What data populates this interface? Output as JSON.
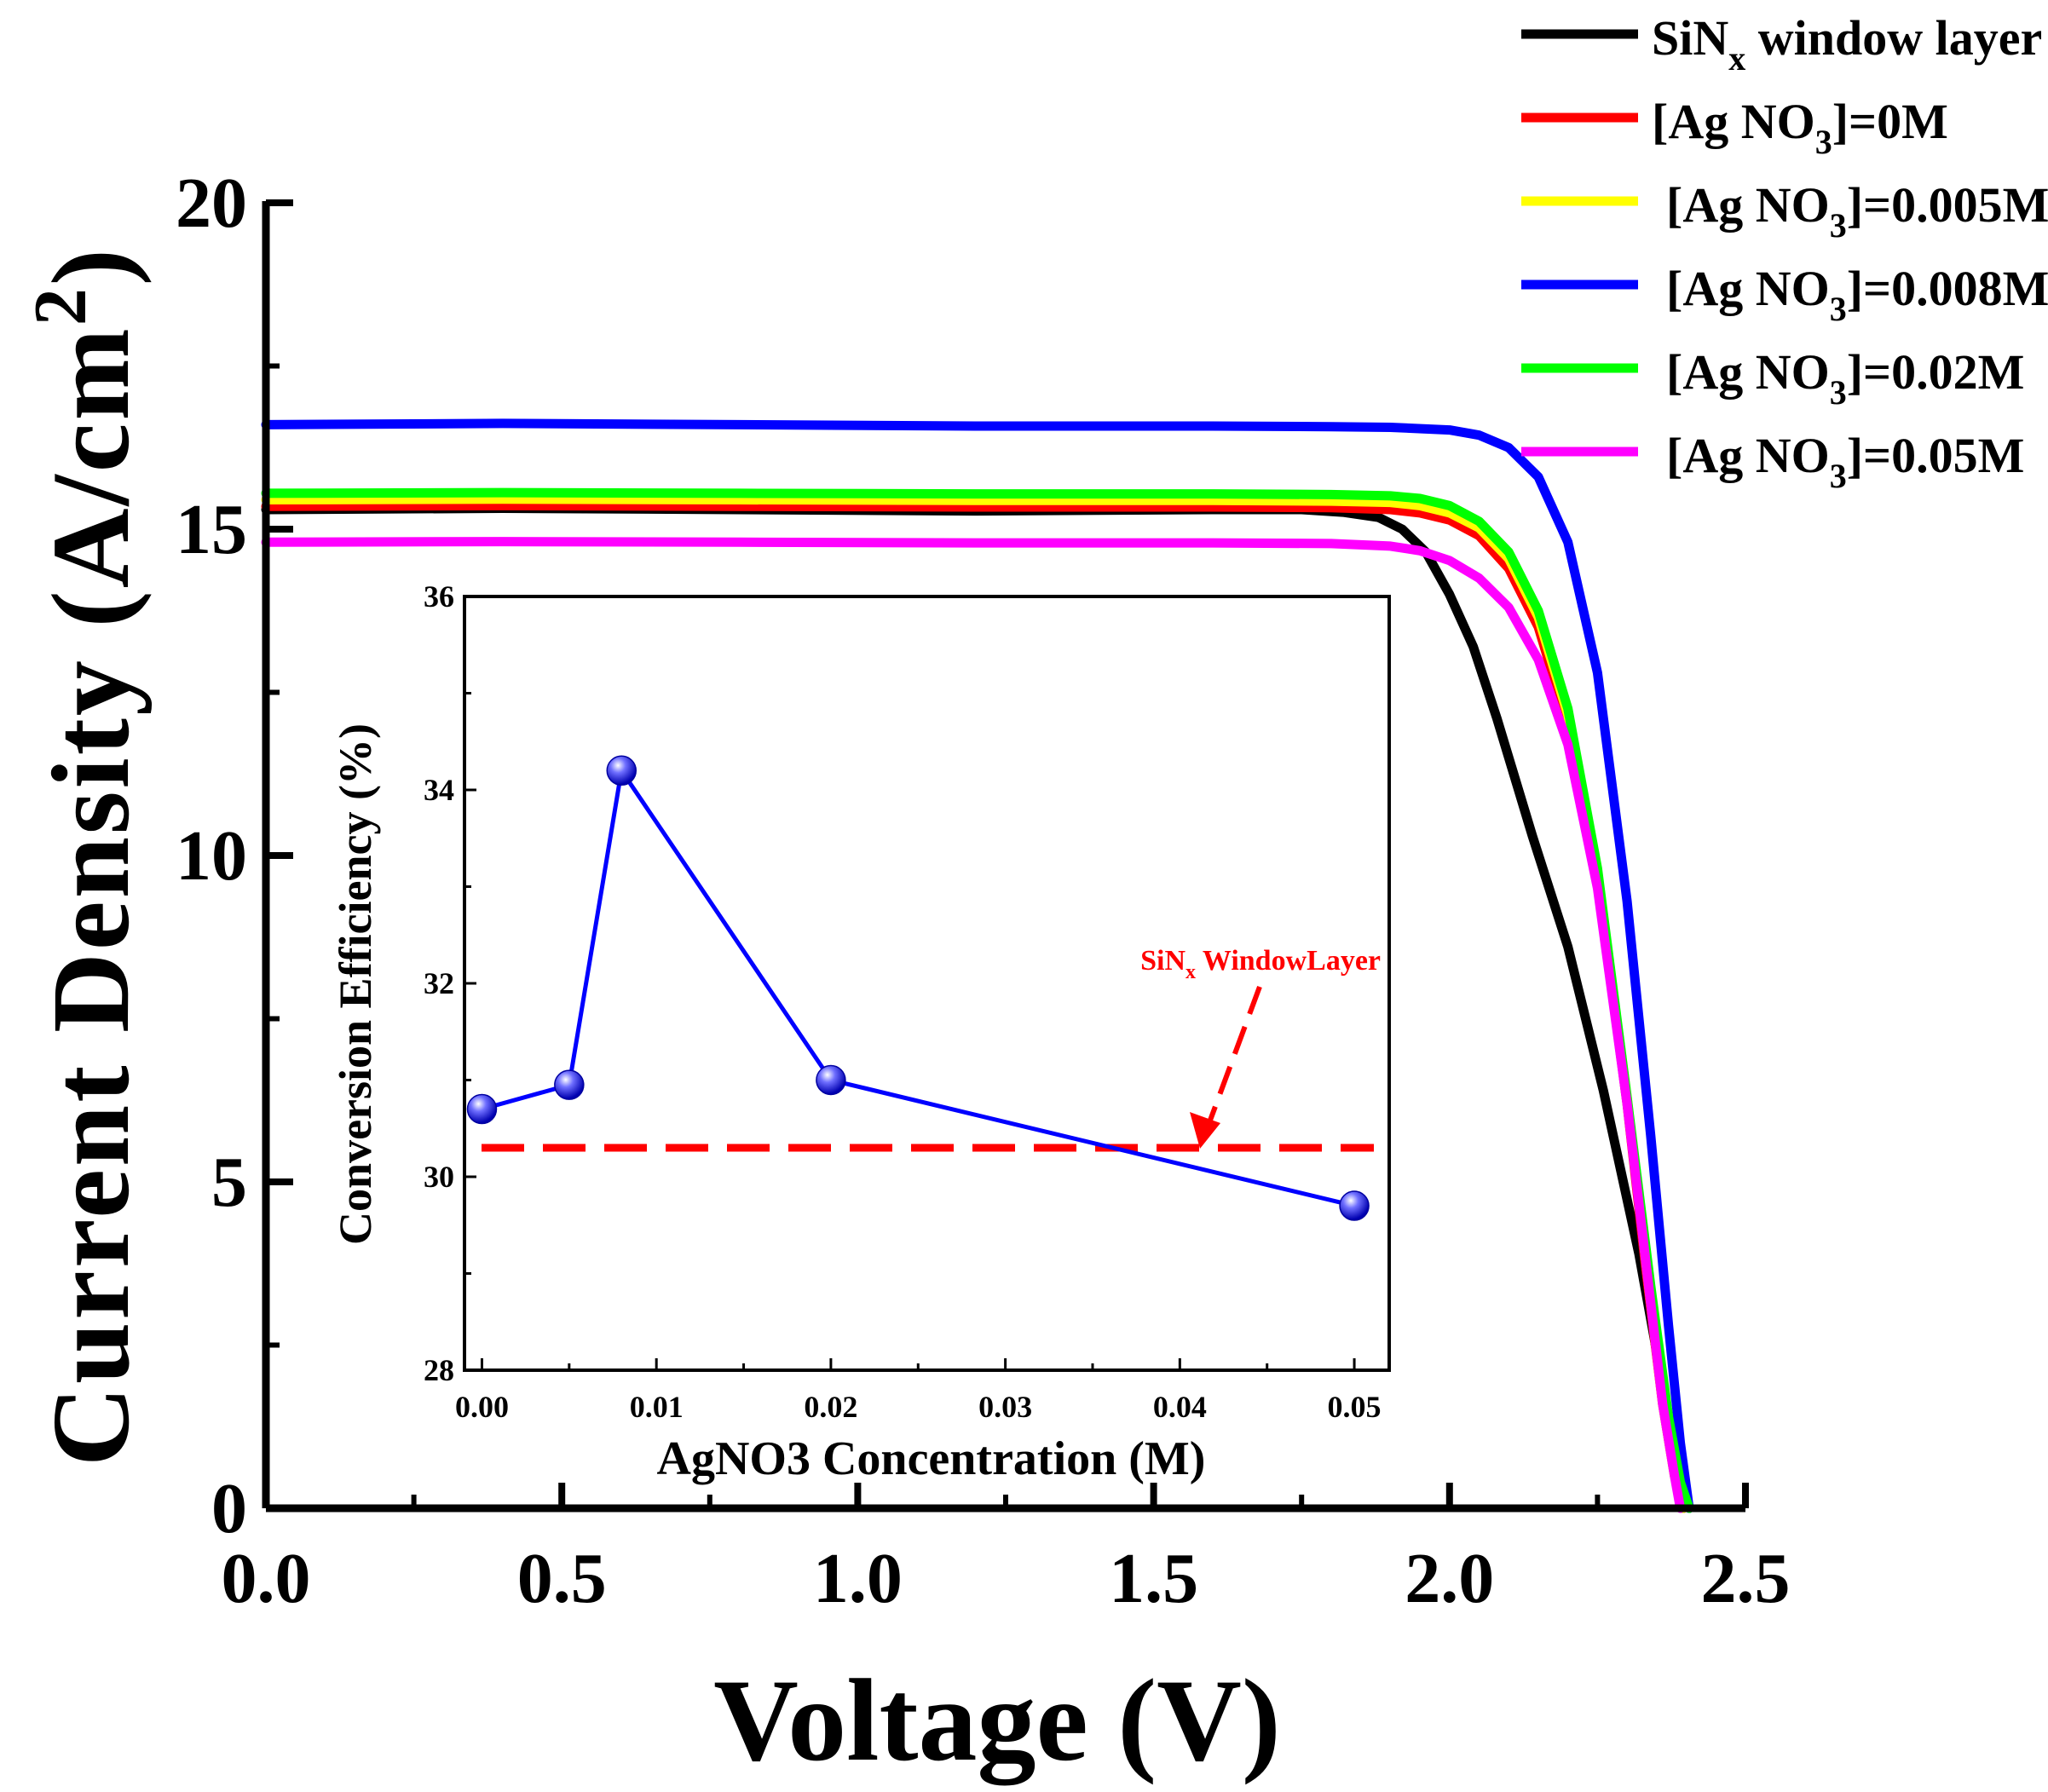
{
  "chart_data": [
    {
      "type": "line",
      "title": "",
      "xlabel": "Voltage (V)",
      "ylabel": "Current Density (A/cm",
      "ylabel_sup": "2",
      "ylabel_close": ")",
      "xlim": [
        0,
        2.5
      ],
      "ylim": [
        0,
        20
      ],
      "xticks": [
        0,
        0.5,
        1.0,
        1.5,
        2.0,
        2.5
      ],
      "xtick_labels": [
        "0.0",
        "0.5",
        "1.0",
        "1.5",
        "2.0",
        "2.5"
      ],
      "yticks": [
        0,
        5,
        10,
        15,
        20
      ],
      "ytick_labels": [
        "0",
        "5",
        "10",
        "15",
        "20"
      ],
      "legend_position": "top-right",
      "series": [
        {
          "name": "SiNx window layer",
          "label_main": "SiN",
          "label_sub": "x",
          "label_tail": " window layer",
          "color": "#000000",
          "x": [
            0,
            0.4,
            0.8,
            1.2,
            1.6,
            1.75,
            1.82,
            1.88,
            1.92,
            1.96,
            2.0,
            2.04,
            2.08,
            2.14,
            2.2,
            2.26,
            2.32,
            2.36,
            2.385,
            2.395
          ],
          "y": [
            15.3,
            15.32,
            15.3,
            15.28,
            15.3,
            15.3,
            15.26,
            15.18,
            15.0,
            14.65,
            14.0,
            13.2,
            12.1,
            10.3,
            8.6,
            6.4,
            3.9,
            1.9,
            0.6,
            0.0
          ]
        },
        {
          "name": "[Ag NO3]=0M",
          "label_main": "[Ag NO",
          "label_sub": "3",
          "label_tail": "]=0M",
          "color": "#ff0000",
          "x": [
            0,
            0.4,
            0.8,
            1.2,
            1.6,
            1.8,
            1.9,
            1.95,
            2.0,
            2.05,
            2.1,
            2.15,
            2.2,
            2.25,
            2.3,
            2.33,
            2.36,
            2.38,
            2.395
          ],
          "y": [
            15.35,
            15.36,
            15.35,
            15.34,
            15.34,
            15.33,
            15.3,
            15.25,
            15.14,
            14.9,
            14.4,
            13.5,
            12.0,
            9.6,
            6.2,
            3.8,
            1.6,
            0.5,
            0.0
          ]
        },
        {
          "name": "[Ag NO3]=0.005M",
          "label_main": "[Ag NO",
          "label_sub": "3",
          "label_tail": "]=0.005M",
          "color": "#ffff00",
          "x": [
            0,
            0.4,
            0.8,
            1.2,
            1.6,
            1.8,
            1.9,
            1.95,
            2.0,
            2.05,
            2.1,
            2.15,
            2.2,
            2.25,
            2.3,
            2.33,
            2.36,
            2.38,
            2.395
          ],
          "y": [
            15.45,
            15.46,
            15.45,
            15.44,
            15.44,
            15.43,
            15.41,
            15.36,
            15.25,
            15.02,
            14.55,
            13.65,
            12.15,
            9.7,
            6.3,
            3.9,
            1.6,
            0.5,
            0.0
          ]
        },
        {
          "name": "[Ag NO3]=0.008M",
          "label_main": "[Ag NO",
          "label_sub": "3",
          "label_tail": "]=0.008M",
          "color": "#0000ff",
          "x": [
            0,
            0.4,
            0.8,
            1.2,
            1.6,
            1.8,
            1.9,
            2.0,
            2.05,
            2.1,
            2.15,
            2.2,
            2.25,
            2.3,
            2.34,
            2.37,
            2.39,
            2.405
          ],
          "y": [
            16.6,
            16.62,
            16.6,
            16.58,
            16.58,
            16.57,
            16.56,
            16.52,
            16.44,
            16.25,
            15.8,
            14.8,
            12.8,
            9.3,
            5.7,
            2.8,
            1.0,
            0.0
          ]
        },
        {
          "name": "[Ag NO3]=0.02M",
          "label_main": "[Ag NO",
          "label_sub": "3",
          "label_tail": "]=0.02M",
          "color": "#00ff00",
          "x": [
            0,
            0.4,
            0.8,
            1.2,
            1.6,
            1.8,
            1.9,
            1.95,
            2.0,
            2.05,
            2.1,
            2.15,
            2.2,
            2.25,
            2.3,
            2.34,
            2.37,
            2.39,
            2.405
          ],
          "y": [
            15.55,
            15.56,
            15.55,
            15.54,
            15.54,
            15.53,
            15.51,
            15.47,
            15.36,
            15.12,
            14.65,
            13.75,
            12.25,
            9.8,
            6.3,
            3.4,
            1.4,
            0.4,
            0.0
          ]
        },
        {
          "name": "[Ag NO3]=0.05M",
          "label_main": "[Ag NO",
          "label_sub": "3",
          "label_tail": "]=0.05M",
          "color": "#ff00ff",
          "x": [
            0,
            0.4,
            0.8,
            1.2,
            1.6,
            1.8,
            1.9,
            1.95,
            2.0,
            2.05,
            2.1,
            2.15,
            2.2,
            2.25,
            2.3,
            2.33,
            2.36,
            2.38,
            2.39
          ],
          "y": [
            14.8,
            14.81,
            14.8,
            14.79,
            14.79,
            14.78,
            14.74,
            14.67,
            14.52,
            14.25,
            13.8,
            13.0,
            11.7,
            9.5,
            6.2,
            3.9,
            1.6,
            0.5,
            0.0
          ]
        }
      ]
    },
    {
      "type": "line",
      "title": "",
      "xlabel": "AgNO3 Concentration (M)",
      "ylabel": "Conversion Efficiency (%)",
      "xlim": [
        -0.001,
        0.052
      ],
      "ylim": [
        28,
        36
      ],
      "xticks": [
        0,
        0.01,
        0.02,
        0.03,
        0.04,
        0.05
      ],
      "xtick_labels": [
        "0.00",
        "0.01",
        "0.02",
        "0.03",
        "0.04",
        "0.05"
      ],
      "yticks": [
        28,
        30,
        32,
        34,
        36
      ],
      "ytick_labels": [
        "28",
        "30",
        "32",
        "34",
        "36"
      ],
      "series": [
        {
          "name": "Conversion Efficiency",
          "color": "#0000ff",
          "x": [
            0,
            0.005,
            0.008,
            0.02,
            0.05
          ],
          "y": [
            30.7,
            30.95,
            34.2,
            31.0,
            29.7
          ]
        }
      ],
      "reference_line": {
        "label_main": "SiN",
        "label_sub": "x",
        "label_tail": " WindowLayer",
        "value": 30.3,
        "color": "#ff0000"
      }
    }
  ]
}
